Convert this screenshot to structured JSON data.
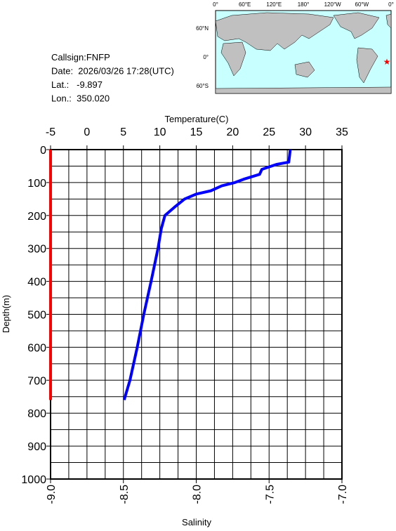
{
  "info": {
    "lines": [
      "Callsign:FNFP",
      "Date:  2026/03/26 17:28(UTC)",
      "Lat.:   -9.897",
      "Lon.:  350.020"
    ]
  },
  "map": {
    "lon_labels": [
      "0°",
      "60°E",
      "120°E",
      "180°",
      "120°W",
      "60°W",
      "0°"
    ],
    "lat_labels": [
      "60°N",
      "0°",
      "60°S"
    ]
  },
  "chart_data": {
    "type": "profile",
    "title_top": "Temperature(C)",
    "title_bottom": "Salinity",
    "y_label": "Depth(m)",
    "xlim": [
      -5,
      35
    ],
    "xticks": [
      -5,
      0,
      5,
      10,
      15,
      20,
      25,
      30,
      35
    ],
    "xgrid": [
      -5,
      -2.5,
      0,
      2.5,
      5,
      7.5,
      10,
      12.5,
      15,
      17.5,
      20,
      22.5,
      25,
      27.5,
      30,
      32.5,
      35
    ],
    "x2lim": [
      -9,
      -7
    ],
    "x2ticks": [
      {
        "value": -9,
        "label": "-9.0"
      },
      {
        "value": -8.5,
        "label": "-8.5"
      },
      {
        "value": -8,
        "label": "-8.0"
      },
      {
        "value": -7.5,
        "label": "-7.5"
      },
      {
        "value": -7,
        "label": "-7.0"
      }
    ],
    "ylim": [
      0,
      1000
    ],
    "y_inverted": true,
    "yticks": [
      0,
      100,
      200,
      300,
      400,
      500,
      600,
      700,
      800,
      900,
      1000
    ],
    "ygrid": [
      0,
      50,
      100,
      150,
      200,
      250,
      300,
      350,
      400,
      450,
      500,
      550,
      600,
      650,
      700,
      750,
      800,
      850,
      900,
      950,
      1000
    ],
    "grid": true,
    "series": [
      {
        "name": "Temperature",
        "color": "#0000ff",
        "axis": "x",
        "depth": [
          0,
          20,
          38,
          45,
          60,
          75,
          90,
          100,
          110,
          125,
          135,
          150,
          175,
          200,
          240,
          300,
          400,
          500,
          600,
          700,
          760
        ],
        "values": [
          27.9,
          27.8,
          27.7,
          26,
          24,
          23.7,
          21.5,
          20.3,
          18.5,
          17,
          15,
          13.4,
          12,
          10.7,
          10.2,
          9.75,
          8.8,
          7.8,
          6.9,
          5.9,
          5.1
        ]
      },
      {
        "name": "Salinity",
        "color": "#ff0000",
        "axis": "x2",
        "depth": [
          0,
          760
        ],
        "values": [
          -9,
          -9
        ]
      }
    ]
  }
}
